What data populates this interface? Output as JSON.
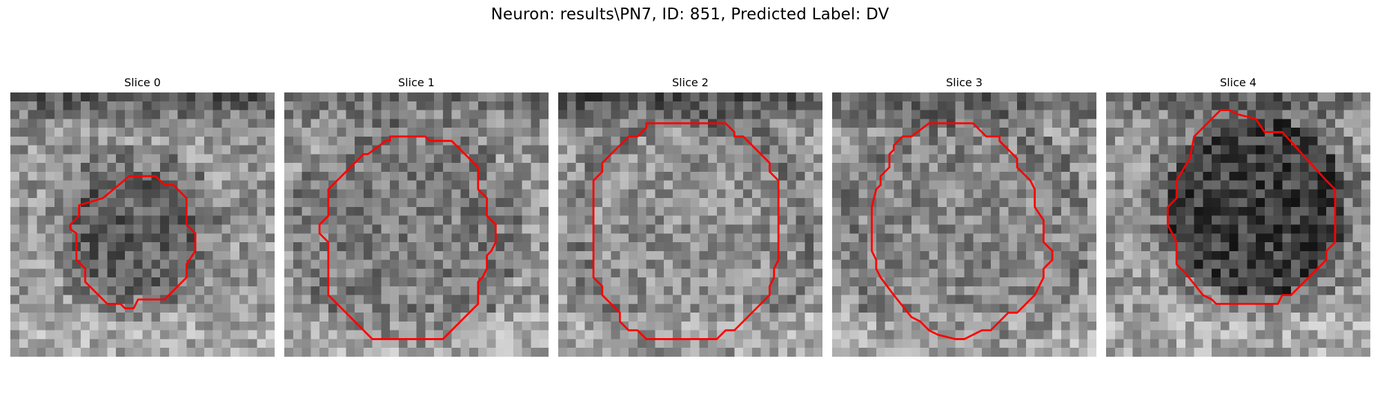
{
  "figure": {
    "title": "Neuron: results\\PN7, ID: 851, Predicted Label: DV",
    "contour_color": "#ff0000"
  },
  "panels": [
    {
      "title": "Slice 0"
    },
    {
      "title": "Slice 1"
    },
    {
      "title": "Slice 2"
    },
    {
      "title": "Slice 3"
    },
    {
      "title": "Slice 4"
    }
  ]
}
